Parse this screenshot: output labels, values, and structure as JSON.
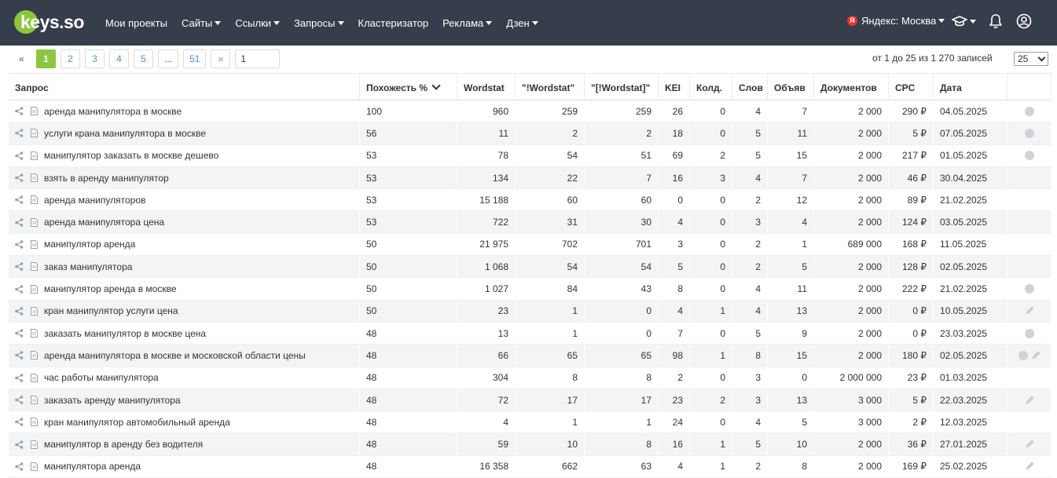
{
  "header": {
    "logo_text": "keys.so",
    "nav": [
      {
        "label": "Мои проекты",
        "dropdown": false
      },
      {
        "label": "Сайты",
        "dropdown": true
      },
      {
        "label": "Ссылки",
        "dropdown": true
      },
      {
        "label": "Запросы",
        "dropdown": true
      },
      {
        "label": "Кластеризатор",
        "dropdown": false
      },
      {
        "label": "Реклама",
        "dropdown": true
      },
      {
        "label": "Дзен",
        "dropdown": true
      }
    ],
    "region_badge": "Я",
    "region_label": "Яндекс: Москва",
    "icons": [
      "graduation-cap-icon",
      "bell-icon",
      "user-icon"
    ],
    "colors": {
      "topbar": "#353e4a",
      "accent": "#8cc63f",
      "region_badge": "#e8352c"
    }
  },
  "pagination": {
    "prev": "«",
    "pages": [
      "1",
      "2",
      "3",
      "4",
      "5",
      "...",
      "51"
    ],
    "active_page": "1",
    "next": "»",
    "page_input_value": "1",
    "records_text": "от 1 до 25 из 1 270 записей",
    "per_page": "25"
  },
  "table": {
    "columns": [
      "Запрос",
      "Похожесть %",
      "Wordstat",
      "\"!Wordstat\"",
      "\"[!Wordstat]\"",
      "KEI",
      "Колд.",
      "Слов",
      "Объяв",
      "Документов",
      "CPC",
      "Дата",
      ""
    ],
    "rows": [
      {
        "query": "аренда манипулятора в москве",
        "sim": "100",
        "ws": "960",
        "ws2": "259",
        "ws3": "259",
        "kei": "26",
        "kold": "0",
        "slov": "4",
        "obj": "7",
        "docs": "2 000",
        "cpc": "290 ₽",
        "date": "04.05.2025",
        "actions": [
          "status-dot"
        ]
      },
      {
        "query": "услуги крана манипулятора в москве",
        "sim": "56",
        "ws": "11",
        "ws2": "2",
        "ws3": "2",
        "kei": "18",
        "kold": "0",
        "slov": "5",
        "obj": "11",
        "docs": "2 000",
        "cpc": "5 ₽",
        "date": "07.05.2025",
        "actions": [
          "status-dot"
        ]
      },
      {
        "query": "манипулятор заказать в москве дешево",
        "sim": "53",
        "ws": "78",
        "ws2": "54",
        "ws3": "51",
        "kei": "69",
        "kold": "2",
        "slov": "5",
        "obj": "15",
        "docs": "2 000",
        "cpc": "217 ₽",
        "date": "01.05.2025",
        "actions": [
          "status-dot"
        ]
      },
      {
        "query": "взять в аренду манипулятор",
        "sim": "53",
        "ws": "134",
        "ws2": "22",
        "ws3": "7",
        "kei": "16",
        "kold": "3",
        "slov": "4",
        "obj": "7",
        "docs": "2 000",
        "cpc": "46 ₽",
        "date": "30.04.2025",
        "actions": []
      },
      {
        "query": "аренда манипуляторов",
        "sim": "53",
        "ws": "15 188",
        "ws2": "60",
        "ws3": "60",
        "kei": "0",
        "kold": "0",
        "slov": "2",
        "obj": "12",
        "docs": "2 000",
        "cpc": "89 ₽",
        "date": "21.02.2025",
        "actions": []
      },
      {
        "query": "аренда манипулятора цена",
        "sim": "53",
        "ws": "722",
        "ws2": "31",
        "ws3": "30",
        "kei": "4",
        "kold": "0",
        "slov": "3",
        "obj": "4",
        "docs": "2 000",
        "cpc": "124 ₽",
        "date": "03.05.2025",
        "actions": []
      },
      {
        "query": "манипулятор аренда",
        "sim": "50",
        "ws": "21 975",
        "ws2": "702",
        "ws3": "701",
        "kei": "3",
        "kold": "0",
        "slov": "2",
        "obj": "1",
        "docs": "689 000",
        "cpc": "168 ₽",
        "date": "11.05.2025",
        "actions": []
      },
      {
        "query": "заказ манипулятора",
        "sim": "50",
        "ws": "1 068",
        "ws2": "54",
        "ws3": "54",
        "kei": "5",
        "kold": "0",
        "slov": "2",
        "obj": "5",
        "docs": "2 000",
        "cpc": "128 ₽",
        "date": "02.05.2025",
        "actions": []
      },
      {
        "query": "манипулятор аренда в москве",
        "sim": "50",
        "ws": "1 027",
        "ws2": "84",
        "ws3": "43",
        "kei": "8",
        "kold": "0",
        "slov": "4",
        "obj": "11",
        "docs": "2 000",
        "cpc": "222 ₽",
        "date": "21.02.2025",
        "actions": [
          "status-dot"
        ]
      },
      {
        "query": "кран манипулятор услуги цена",
        "sim": "50",
        "ws": "23",
        "ws2": "1",
        "ws3": "0",
        "kei": "4",
        "kold": "1",
        "slov": "4",
        "obj": "13",
        "docs": "2 000",
        "cpc": "0 ₽",
        "date": "10.05.2025",
        "actions": [
          "pencil"
        ]
      },
      {
        "query": "заказать манипулятор в москве цена",
        "sim": "48",
        "ws": "13",
        "ws2": "1",
        "ws3": "0",
        "kei": "7",
        "kold": "0",
        "slov": "5",
        "obj": "9",
        "docs": "2 000",
        "cpc": "0 ₽",
        "date": "23.03.2025",
        "actions": [
          "status-dot"
        ]
      },
      {
        "query": "аренда манипулятора в москве и московской области цены",
        "sim": "48",
        "ws": "66",
        "ws2": "65",
        "ws3": "65",
        "kei": "98",
        "kold": "1",
        "slov": "8",
        "obj": "15",
        "docs": "2 000",
        "cpc": "180 ₽",
        "date": "02.05.2025",
        "actions": [
          "status-dot",
          "pencil"
        ]
      },
      {
        "query": "час работы манипулятора",
        "sim": "48",
        "ws": "304",
        "ws2": "8",
        "ws3": "8",
        "kei": "2",
        "kold": "0",
        "slov": "3",
        "obj": "0",
        "docs": "2 000 000",
        "cpc": "23 ₽",
        "date": "01.03.2025",
        "actions": []
      },
      {
        "query": "заказать аренду манипулятора",
        "sim": "48",
        "ws": "72",
        "ws2": "17",
        "ws3": "17",
        "kei": "23",
        "kold": "2",
        "slov": "3",
        "obj": "13",
        "docs": "3 000",
        "cpc": "5 ₽",
        "date": "22.03.2025",
        "actions": [
          "pencil"
        ]
      },
      {
        "query": "кран манипулятор автомобильный аренда",
        "sim": "48",
        "ws": "4",
        "ws2": "1",
        "ws3": "1",
        "kei": "24",
        "kold": "0",
        "slov": "4",
        "obj": "5",
        "docs": "3 000",
        "cpc": "2 ₽",
        "date": "12.03.2025",
        "actions": []
      },
      {
        "query": "манипулятор в аренду без водителя",
        "sim": "48",
        "ws": "59",
        "ws2": "10",
        "ws3": "8",
        "kei": "16",
        "kold": "1",
        "slov": "5",
        "obj": "10",
        "docs": "2 000",
        "cpc": "36 ₽",
        "date": "27.01.2025",
        "actions": [
          "pencil"
        ]
      },
      {
        "query": "манипулятора аренда",
        "sim": "48",
        "ws": "16 358",
        "ws2": "662",
        "ws3": "63",
        "kei": "4",
        "kold": "1",
        "slov": "2",
        "obj": "8",
        "docs": "2 000",
        "cpc": "169 ₽",
        "date": "25.02.2025",
        "actions": [
          "pencil"
        ]
      }
    ]
  }
}
